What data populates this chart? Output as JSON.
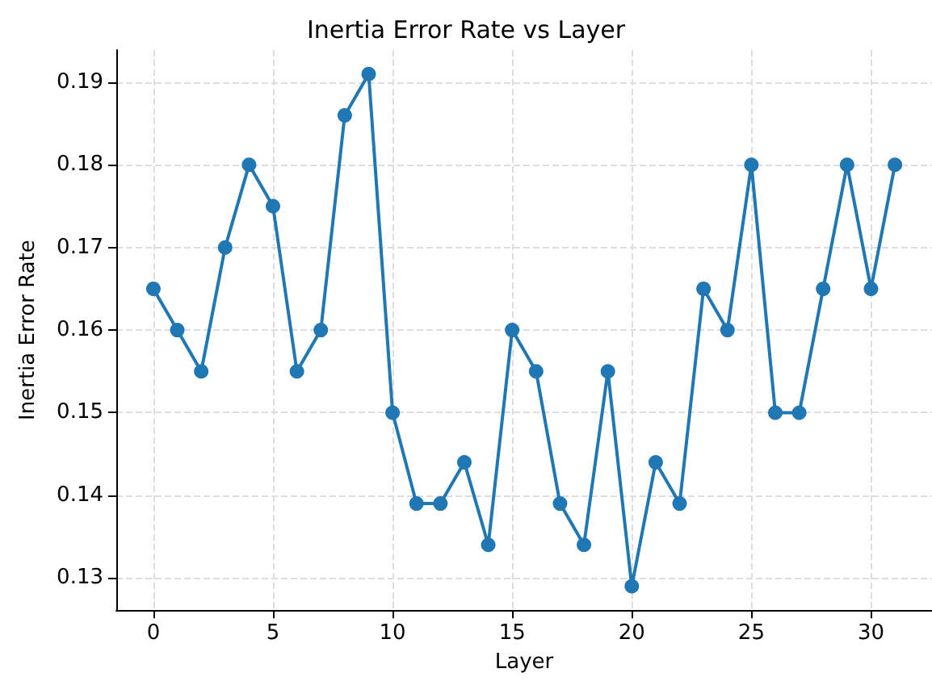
{
  "chart_data": {
    "type": "line",
    "title": "Inertia Error Rate vs Layer",
    "xlabel": "Layer",
    "ylabel": "Inertia Error Rate",
    "x": [
      0,
      1,
      2,
      3,
      4,
      5,
      6,
      7,
      8,
      9,
      10,
      11,
      12,
      13,
      14,
      15,
      16,
      17,
      18,
      19,
      20,
      21,
      22,
      23,
      24,
      25,
      26,
      27,
      28,
      29,
      30,
      31
    ],
    "series": [
      {
        "color": "#1f77b4",
        "values": [
          0.165,
          0.16,
          0.155,
          0.17,
          0.18,
          0.175,
          0.155,
          0.16,
          0.186,
          0.191,
          0.15,
          0.139,
          0.139,
          0.144,
          0.134,
          0.16,
          0.155,
          0.139,
          0.134,
          0.155,
          0.129,
          0.144,
          0.139,
          0.165,
          0.16,
          0.18,
          0.15,
          0.15,
          0.165,
          0.18,
          0.165,
          0.18
        ]
      }
    ],
    "xlim": [
      -1.55,
      32.55
    ],
    "xticks": [
      0,
      5,
      10,
      15,
      20,
      25,
      30
    ],
    "ylim": [
      0.1261,
      0.1939
    ],
    "yticks": [
      0.13,
      0.14,
      0.15,
      0.16,
      0.17,
      0.18,
      0.19
    ],
    "grid": true,
    "marker": "circle",
    "line_style": "solid"
  }
}
